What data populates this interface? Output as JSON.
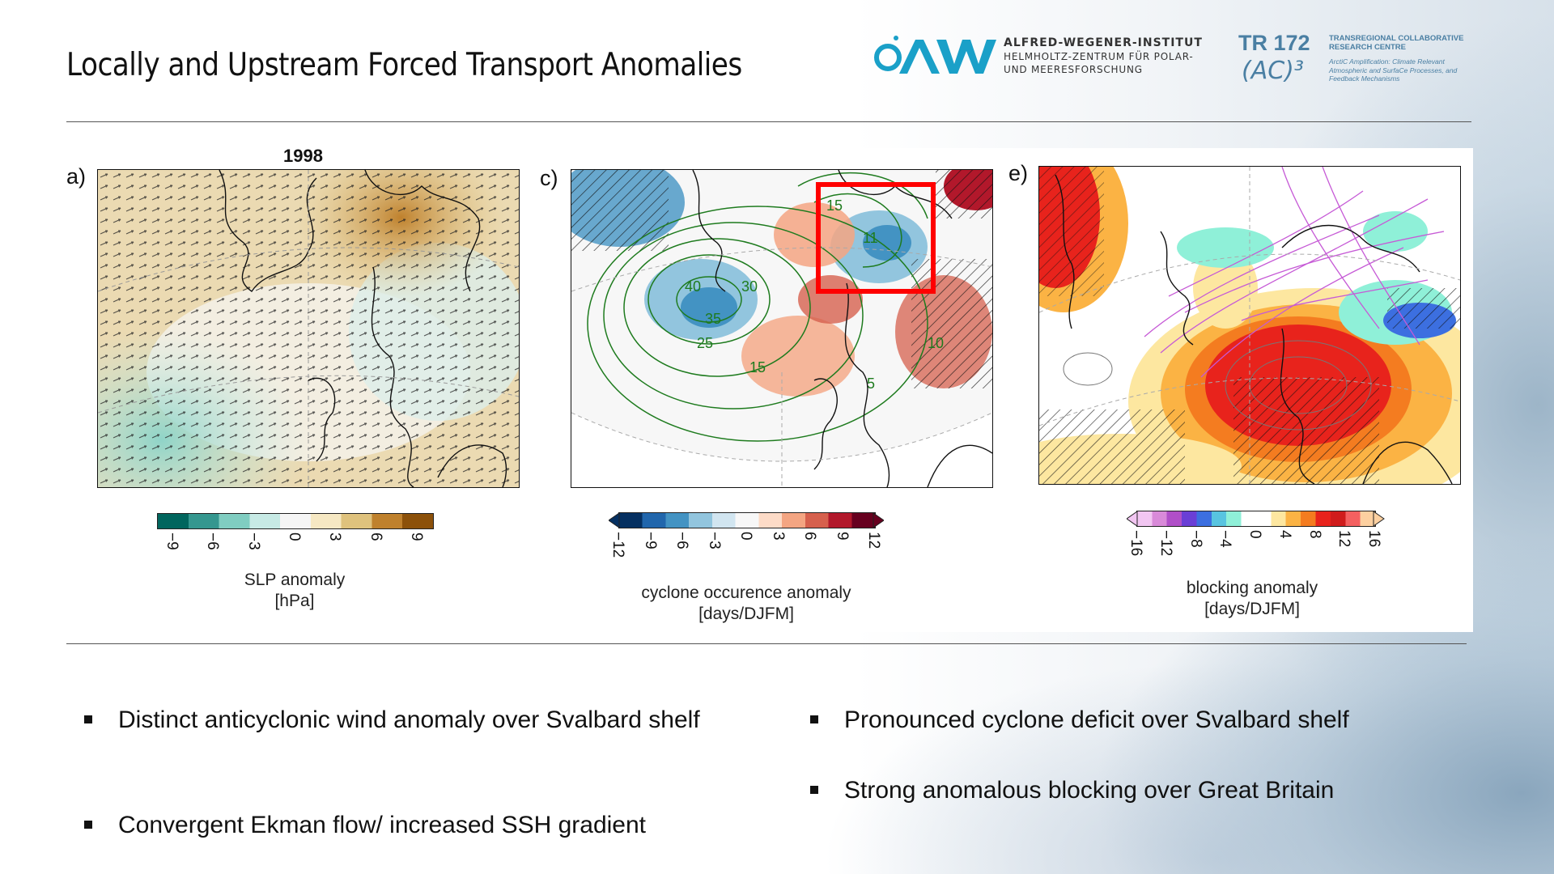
{
  "slide": {
    "title": "Locally and Upstream Forced Transport Anomalies"
  },
  "logos": {
    "awi": {
      "mark": "AWI",
      "line1": "ALFRED-WEGENER-INSTITUT",
      "line2": "HELMHOLTZ-ZENTRUM FÜR POLAR-",
      "line3": "UND MEERESFORSCHUNG"
    },
    "tr172": {
      "big": "TR 172",
      "ac": "(AC)³",
      "sub": "TRANSREGIONAL COLLABORATIVE RESEARCH CENTRE",
      "desc": "ArctiC Amplification: Climate Relevant Atmospheric and SurfaCe Processes, and Feedback Mechanisms"
    }
  },
  "figure": {
    "panel_a": {
      "label": "a)",
      "year": "1998",
      "colorbar": {
        "ticks": [
          "−9",
          "−6",
          "−3",
          "0",
          "3",
          "6",
          "9"
        ],
        "label_line1": "SLP anomaly",
        "label_line2": "[hPa]",
        "colors": [
          "#01665e",
          "#35978f",
          "#80cdc1",
          "#c7eae5",
          "#f5f5f5",
          "#f6e8c3",
          "#dfc27d",
          "#bf812d",
          "#8c510a"
        ]
      }
    },
    "panel_c": {
      "label": "c)",
      "contour_labels": [
        "15",
        "40",
        "30",
        "35",
        "25",
        "15",
        "10",
        "5",
        "11"
      ],
      "colorbar": {
        "ticks": [
          "−12",
          "−9",
          "−6",
          "−3",
          "0",
          "3",
          "6",
          "9",
          "12"
        ],
        "label_line1": "cyclone occurence anomaly",
        "label_line2": "[days/DJFM]",
        "colors": [
          "#053061",
          "#2166ac",
          "#4393c3",
          "#92c5de",
          "#d1e5f0",
          "#f7f7f7",
          "#fddbc7",
          "#f4a582",
          "#d6604d",
          "#b2182b",
          "#67001f"
        ]
      },
      "highlight_color": "#ff0000"
    },
    "panel_e": {
      "label": "e)",
      "colorbar": {
        "ticks": [
          "−16",
          "−12",
          "−8",
          "−4",
          "0",
          "4",
          "8",
          "12",
          "16"
        ],
        "label_line1": "blocking anomaly",
        "label_line2": "[days/DJFM]",
        "colors": [
          "#f2c6f2",
          "#d98ad9",
          "#b04fc8",
          "#6a3fd6",
          "#3c6fe0",
          "#58c4e0",
          "#8ff0d8",
          "#ffffff",
          "#ffffff",
          "#fde7a0",
          "#fbb344",
          "#f47c20",
          "#e8231c",
          "#d01c1c",
          "#f46060",
          "#fdd0a0"
        ]
      }
    }
  },
  "bullets": {
    "left": [
      "Distinct anticyclonic wind anomaly over Svalbard shelf",
      "Convergent Ekman flow/ increased SSH gradient"
    ],
    "right": [
      "Pronounced cyclone deficit over Svalbard shelf",
      "Strong anomalous blocking over Great Britain"
    ]
  }
}
